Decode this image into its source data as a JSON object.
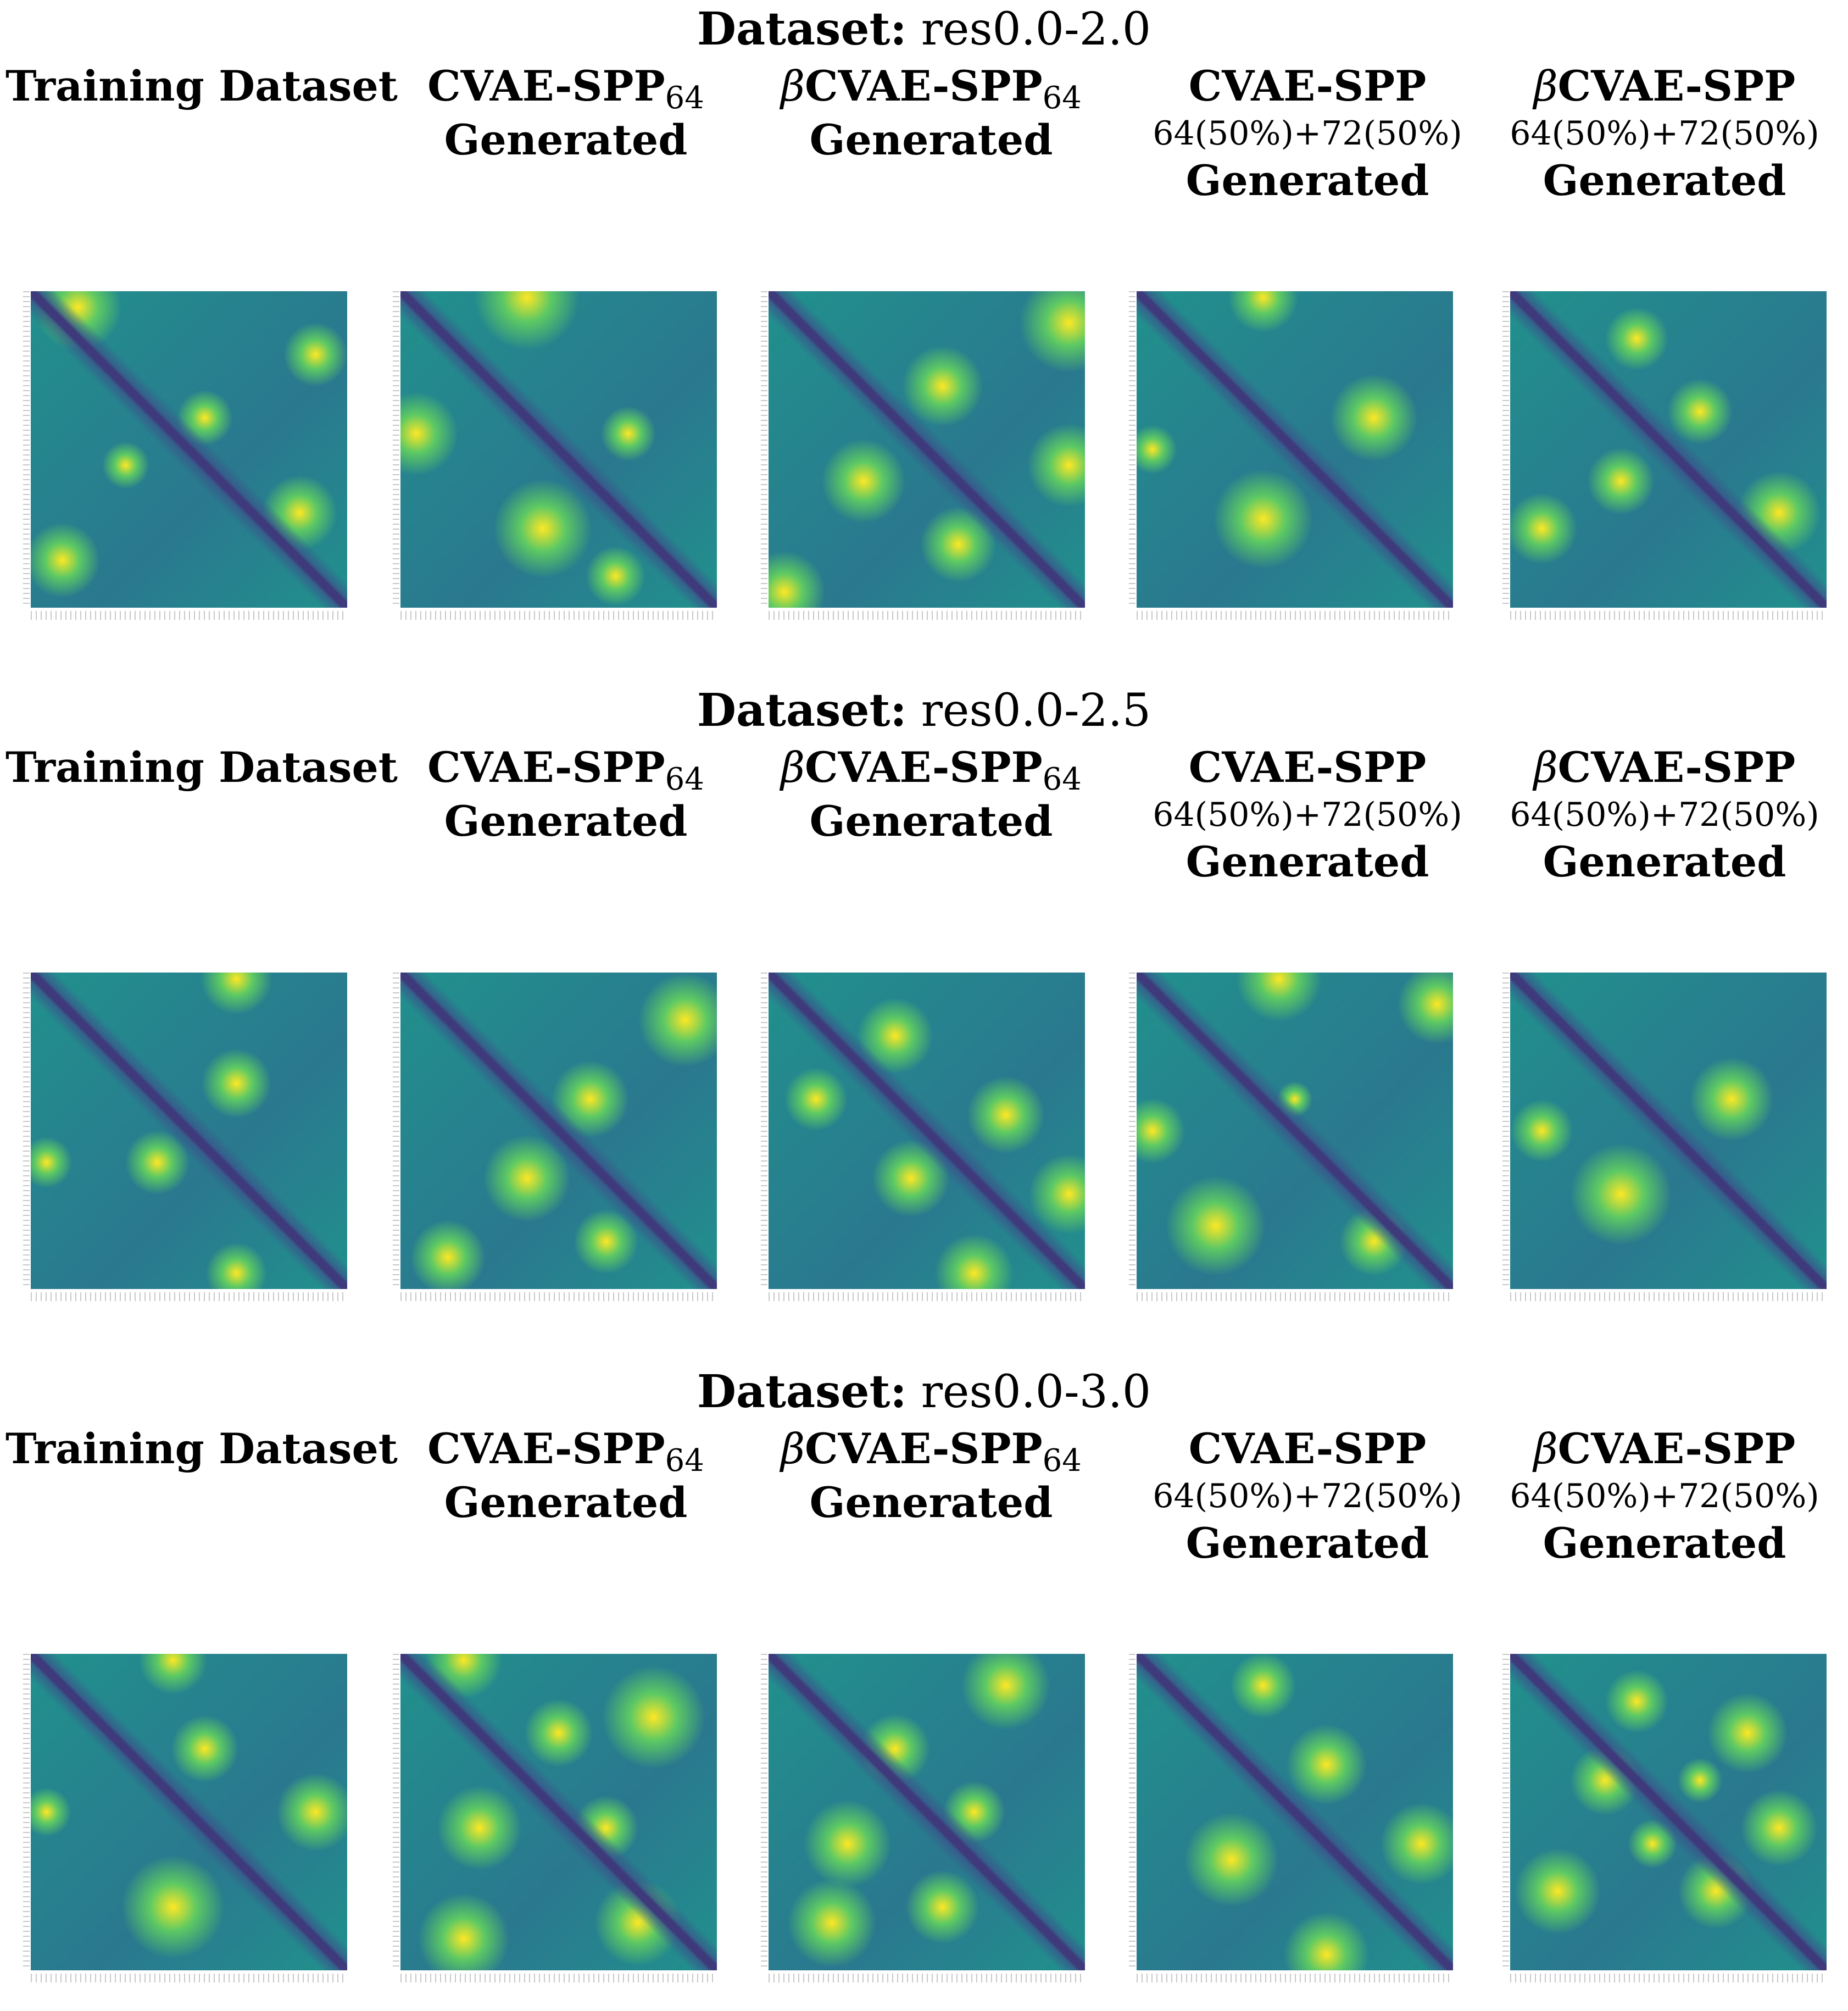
{
  "sections": [
    {
      "dataset_label": "Dataset:",
      "dataset_value": "res0.0-2.0",
      "columns": [
        {
          "line1": "Training Dataset",
          "sub": "",
          "mix": "",
          "line2": ""
        },
        {
          "line1": "CVAE-SPP",
          "sub": "64",
          "mix": "",
          "line2": "Generated"
        },
        {
          "line1": "βCVAE-SPP",
          "sub": "64",
          "mix": "",
          "line2": "Generated"
        },
        {
          "line1": "CVAE-SPP",
          "sub": "",
          "mix": "64(50%)+72(50%)",
          "line2": "Generated"
        },
        {
          "line1": "βCVAE-SPP",
          "sub": "",
          "mix": "64(50%)+72(50%)",
          "line2": "Generated"
        }
      ]
    },
    {
      "dataset_label": "Dataset:",
      "dataset_value": "res0.0-2.5",
      "columns": [
        {
          "line1": "Training Dataset",
          "sub": "",
          "mix": "",
          "line2": ""
        },
        {
          "line1": "CVAE-SPP",
          "sub": "64",
          "mix": "",
          "line2": "Generated"
        },
        {
          "line1": "βCVAE-SPP",
          "sub": "64",
          "mix": "",
          "line2": "Generated"
        },
        {
          "line1": "CVAE-SPP",
          "sub": "",
          "mix": "64(50%)+72(50%)",
          "line2": "Generated"
        },
        {
          "line1": "βCVAE-SPP",
          "sub": "",
          "mix": "64(50%)+72(50%)",
          "line2": "Generated"
        }
      ]
    },
    {
      "dataset_label": "Dataset:",
      "dataset_value": "res0.0-3.0",
      "columns": [
        {
          "line1": "Training Dataset",
          "sub": "",
          "mix": "",
          "line2": ""
        },
        {
          "line1": "CVAE-SPP",
          "sub": "64",
          "mix": "",
          "line2": "Generated"
        },
        {
          "line1": "βCVAE-SPP",
          "sub": "64",
          "mix": "",
          "line2": "Generated"
        },
        {
          "line1": "CVAE-SPP",
          "sub": "",
          "mix": "64(50%)+72(50%)",
          "line2": "Generated"
        },
        {
          "line1": "βCVAE-SPP",
          "sub": "",
          "mix": "64(50%)+72(50%)",
          "line2": "Generated"
        }
      ]
    }
  ],
  "colormap": [
    "#440154",
    "#3b528b",
    "#21908d",
    "#5dc963",
    "#fde725"
  ]
}
